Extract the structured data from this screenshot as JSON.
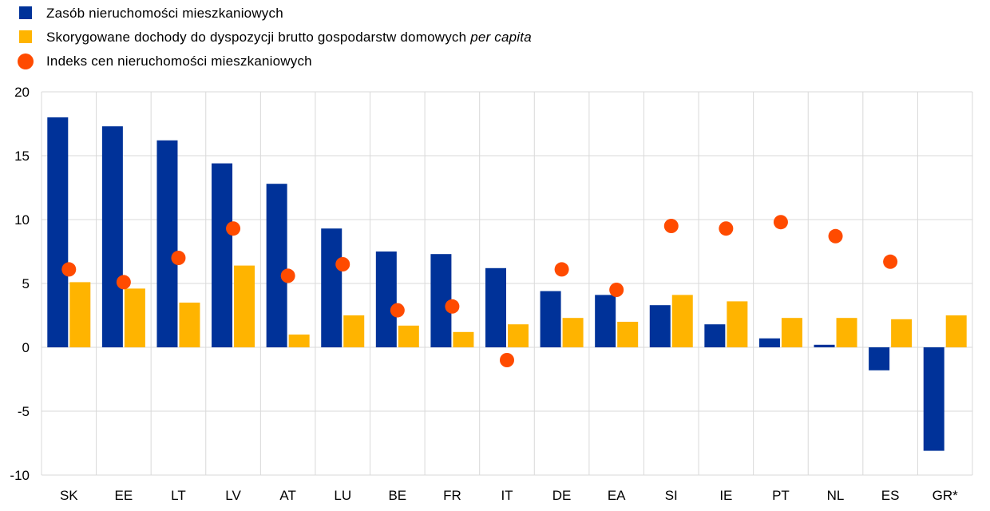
{
  "legend": {
    "item1": "Zasób nieruchomości mieszkaniowych",
    "item2_main": "Skorygowane dochody do dyspozycji brutto gospodarstw  domowych ",
    "item2_italic": "per capita",
    "item3": "Indeks cen nieruchomości mieszkaniowych"
  },
  "chart_data": {
    "type": "bar",
    "categories": [
      "SK",
      "EE",
      "LT",
      "LV",
      "AT",
      "LU",
      "BE",
      "FR",
      "IT",
      "DE",
      "EA",
      "SI",
      "IE",
      "PT",
      "NL",
      "ES",
      "GR*"
    ],
    "series": [
      {
        "name": "Zasób nieruchomości mieszkaniowych",
        "type": "bar",
        "color": "#003299",
        "values": [
          18.0,
          17.3,
          16.2,
          14.4,
          12.8,
          9.3,
          7.5,
          7.3,
          6.2,
          4.4,
          4.1,
          3.3,
          1.8,
          0.7,
          0.2,
          -1.8,
          -8.1
        ]
      },
      {
        "name": "Skorygowane dochody do dyspozycji brutto gospodarstw domowych per capita",
        "type": "bar",
        "color": "#FFB400",
        "values": [
          5.1,
          4.6,
          3.5,
          6.4,
          1.0,
          2.5,
          1.7,
          1.2,
          1.8,
          2.3,
          2.0,
          4.1,
          3.6,
          2.3,
          2.3,
          2.2,
          2.5
        ]
      },
      {
        "name": "Indeks cen nieruchomości mieszkaniowych",
        "type": "scatter",
        "color": "#FF4B00",
        "values": [
          6.1,
          5.1,
          7.0,
          9.3,
          5.6,
          6.5,
          2.9,
          3.2,
          -1.0,
          6.1,
          4.5,
          9.5,
          9.3,
          9.8,
          8.7,
          6.7,
          null
        ]
      }
    ],
    "ylim": [
      -10,
      20
    ],
    "yticks": [
      "20",
      "15",
      "10",
      "5",
      "0",
      "-5",
      "-10"
    ],
    "ytick_values": [
      20,
      15,
      10,
      5,
      0,
      -5,
      -10
    ],
    "grid": true,
    "legend_position": "top-left"
  }
}
